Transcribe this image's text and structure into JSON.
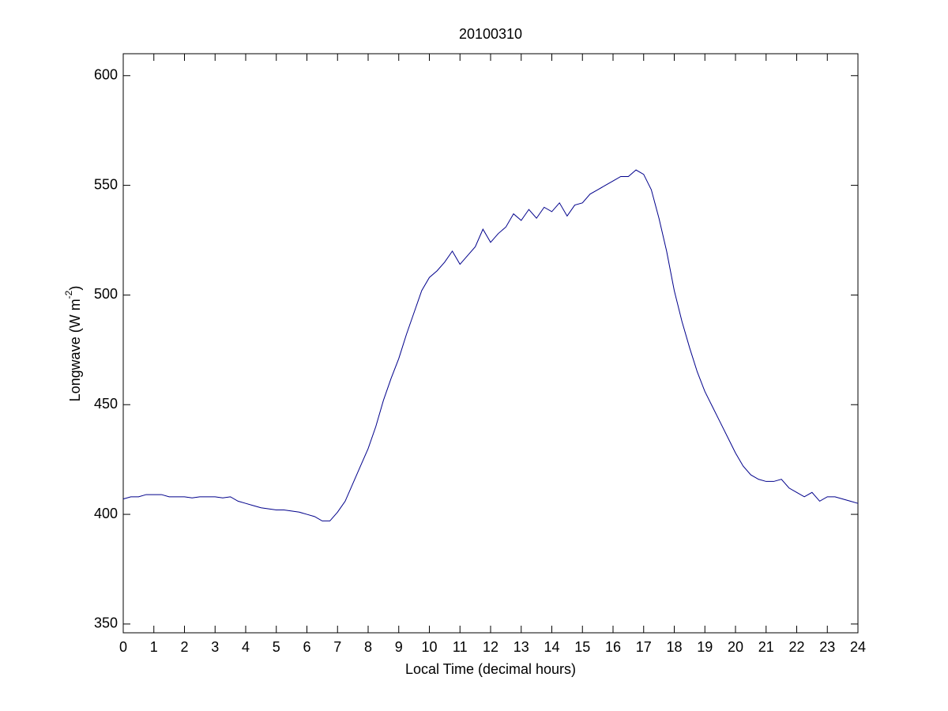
{
  "chart_data": {
    "type": "line",
    "title": "20100310",
    "xlabel": "Local Time (decimal hours)",
    "ylabel": [
      "Longwave (W m",
      "-2",
      ")"
    ],
    "x": [
      0,
      0.25,
      0.5,
      0.75,
      1,
      1.25,
      1.5,
      1.75,
      2,
      2.25,
      2.5,
      2.75,
      3,
      3.25,
      3.5,
      3.75,
      4,
      4.25,
      4.5,
      4.75,
      5,
      5.25,
      5.5,
      5.75,
      6,
      6.25,
      6.5,
      6.75,
      7,
      7.25,
      7.5,
      7.75,
      8,
      8.25,
      8.5,
      8.75,
      9,
      9.25,
      9.5,
      9.75,
      10,
      10.25,
      10.5,
      10.75,
      11,
      11.25,
      11.5,
      11.75,
      12,
      12.25,
      12.5,
      12.75,
      13,
      13.25,
      13.5,
      13.75,
      14,
      14.25,
      14.5,
      14.75,
      15,
      15.25,
      15.5,
      15.75,
      16,
      16.25,
      16.5,
      16.75,
      17,
      17.25,
      17.5,
      17.75,
      18,
      18.25,
      18.5,
      18.75,
      19,
      19.25,
      19.5,
      19.75,
      20,
      20.25,
      20.5,
      20.75,
      21,
      21.25,
      21.5,
      21.75,
      22,
      22.25,
      22.5,
      22.75,
      23,
      23.25,
      23.5,
      23.75,
      24
    ],
    "series": [
      {
        "color": "#00008b",
        "values": [
          407,
          408,
          408,
          409,
          409,
          409,
          408,
          408,
          408,
          407.5,
          408,
          408,
          408,
          407.5,
          408,
          406,
          405,
          404,
          403,
          402.5,
          402,
          402,
          401.5,
          401,
          400,
          399,
          397,
          397,
          401,
          406,
          414,
          422,
          430,
          440,
          452,
          462,
          471,
          482,
          492,
          502,
          508,
          511,
          515,
          520,
          514,
          518,
          522,
          530,
          524,
          528,
          531,
          537,
          534,
          539,
          535,
          540,
          538,
          542,
          536,
          541,
          542,
          546,
          548,
          550,
          552,
          554,
          554,
          557,
          555,
          548,
          535,
          520,
          502,
          488,
          476,
          465,
          456,
          449,
          442,
          435,
          428,
          422,
          418,
          416,
          415,
          415,
          416,
          412,
          410,
          408,
          410,
          406,
          408,
          408,
          407,
          406,
          405
        ]
      }
    ],
    "xlim": [
      0,
      24
    ],
    "xticks": [
      0,
      1,
      2,
      3,
      4,
      5,
      6,
      7,
      8,
      9,
      10,
      11,
      12,
      13,
      14,
      15,
      16,
      17,
      18,
      19,
      20,
      21,
      22,
      23,
      24
    ],
    "ylim": [
      346,
      610
    ],
    "yticks": [
      350,
      400,
      450,
      500,
      550,
      600
    ]
  }
}
